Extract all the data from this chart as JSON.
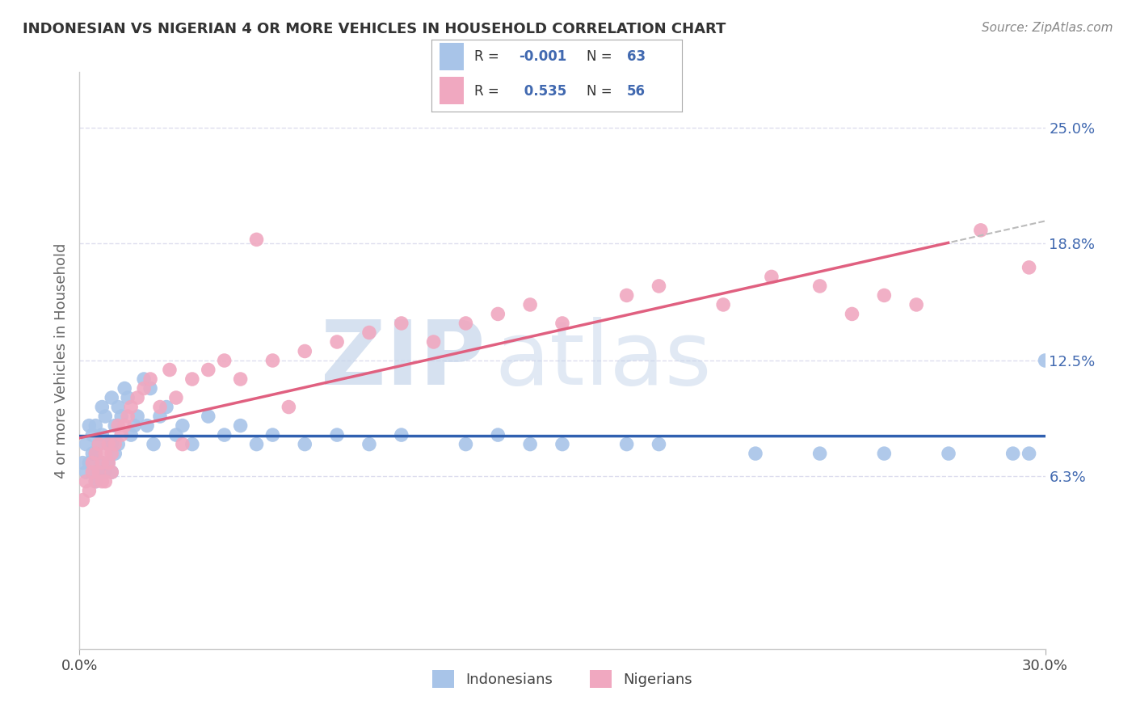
{
  "title": "INDONESIAN VS NIGERIAN 4 OR MORE VEHICLES IN HOUSEHOLD CORRELATION CHART",
  "source": "Source: ZipAtlas.com",
  "ylabel": "4 or more Vehicles in Household",
  "xlim": [
    0.0,
    30.0
  ],
  "ylim": [
    -3.0,
    28.0
  ],
  "y_tick_vals": [
    6.3,
    12.5,
    18.8,
    25.0
  ],
  "y_tick_labels": [
    "6.3%",
    "12.5%",
    "18.8%",
    "25.0%"
  ],
  "indonesian_color": "#a8c4e8",
  "nigerian_color": "#f0a8c0",
  "indonesian_line_color": "#3060b0",
  "nigerian_line_color": "#e06080",
  "watermark_zip": "ZIP",
  "watermark_atlas": "atlas",
  "watermark_color_zip": "#c8d8f0",
  "watermark_color_atlas": "#c8d8f0",
  "indonesian_x": [
    0.1,
    0.2,
    0.2,
    0.3,
    0.3,
    0.4,
    0.4,
    0.5,
    0.5,
    0.5,
    0.6,
    0.6,
    0.7,
    0.7,
    0.7,
    0.8,
    0.8,
    0.9,
    0.9,
    1.0,
    1.0,
    1.0,
    1.1,
    1.1,
    1.2,
    1.2,
    1.3,
    1.4,
    1.5,
    1.6,
    1.7,
    1.8,
    2.0,
    2.1,
    2.2,
    2.3,
    2.5,
    2.7,
    3.0,
    3.2,
    3.5,
    4.0,
    4.5,
    5.0,
    5.5,
    6.0,
    7.0,
    8.0,
    9.0,
    10.0,
    12.0,
    13.0,
    14.0,
    15.0,
    17.0,
    18.0,
    21.0,
    23.0,
    25.0,
    27.0,
    29.0,
    29.5,
    30.0
  ],
  "indonesian_y": [
    7.0,
    6.5,
    8.0,
    7.0,
    9.0,
    7.5,
    8.5,
    6.0,
    7.5,
    9.0,
    6.5,
    8.0,
    7.0,
    8.5,
    10.0,
    6.5,
    9.5,
    7.0,
    8.0,
    6.5,
    8.0,
    10.5,
    7.5,
    9.0,
    8.0,
    10.0,
    9.5,
    11.0,
    10.5,
    8.5,
    9.0,
    9.5,
    11.5,
    9.0,
    11.0,
    8.0,
    9.5,
    10.0,
    8.5,
    9.0,
    8.0,
    9.5,
    8.5,
    9.0,
    8.0,
    8.5,
    8.0,
    8.5,
    8.0,
    8.5,
    8.0,
    8.5,
    8.0,
    8.0,
    8.0,
    8.0,
    7.5,
    7.5,
    7.5,
    7.5,
    7.5,
    7.5,
    12.5
  ],
  "nigerian_x": [
    0.1,
    0.2,
    0.3,
    0.4,
    0.4,
    0.5,
    0.5,
    0.6,
    0.6,
    0.7,
    0.7,
    0.8,
    0.8,
    0.9,
    0.9,
    1.0,
    1.0,
    1.1,
    1.2,
    1.3,
    1.4,
    1.5,
    1.6,
    1.8,
    2.0,
    2.2,
    2.5,
    2.8,
    3.0,
    3.5,
    4.0,
    4.5,
    5.0,
    6.0,
    7.0,
    8.0,
    9.0,
    10.0,
    11.0,
    12.0,
    13.0,
    14.0,
    15.0,
    17.0,
    18.0,
    20.0,
    21.5,
    23.0,
    24.0,
    25.0,
    26.0,
    28.0,
    29.5,
    5.5,
    3.2,
    6.5
  ],
  "nigerian_y": [
    5.0,
    6.0,
    5.5,
    7.0,
    6.5,
    7.5,
    6.0,
    8.0,
    6.5,
    7.0,
    6.0,
    7.5,
    6.0,
    8.0,
    7.0,
    7.5,
    6.5,
    8.0,
    9.0,
    8.5,
    9.0,
    9.5,
    10.0,
    10.5,
    11.0,
    11.5,
    10.0,
    12.0,
    10.5,
    11.5,
    12.0,
    12.5,
    11.5,
    12.5,
    13.0,
    13.5,
    14.0,
    14.5,
    13.5,
    14.5,
    15.0,
    15.5,
    14.5,
    16.0,
    16.5,
    15.5,
    17.0,
    16.5,
    15.0,
    16.0,
    15.5,
    19.5,
    17.5,
    19.0,
    8.0,
    10.0
  ]
}
